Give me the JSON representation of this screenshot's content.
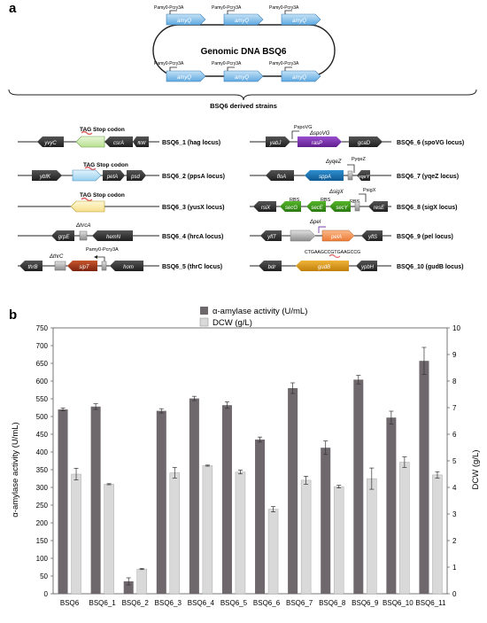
{
  "panel_a": {
    "letter": "a",
    "genome_title": "Genomic DNA BSQ6",
    "gene_label": "amyQ",
    "promoter_label": "Pamy0-Pcry3A",
    "derived_title": "BSQ6 derived strains",
    "tag_stop": "TAG Stop codon",
    "strains": [
      {
        "name": "BSQ6_1 (hag locus)",
        "genes": [
          "yvyC",
          "hag",
          "csrA",
          "fliW"
        ]
      },
      {
        "name": "BSQ6_2 (ppsA locus)",
        "genes": [
          "ybfK",
          "ppsA",
          "petA",
          "psd"
        ]
      },
      {
        "name": "BSQ6_3 (yusX locus)",
        "genes": [
          "yusX"
        ]
      },
      {
        "name": "BSQ6_4 (hrcA locus)",
        "genes": [
          "grpE",
          "ΔhrcA",
          "hemN"
        ]
      },
      {
        "name": "BSQ6_5 (thrC locus)",
        "genes": [
          "thrB",
          "ΔthrC",
          "sipT",
          "hom"
        ]
      },
      {
        "name": "BSQ6_6 (spoVG locus)",
        "genes": [
          "yabJ",
          "ΔspoVG",
          "rasP",
          "gcaD"
        ]
      },
      {
        "name": "BSQ6_7 (yqeZ locus)",
        "genes": [
          "floA",
          "ΔyqeZ",
          "sppA",
          "yqeY"
        ]
      },
      {
        "name": "BSQ6_8 (sigX locus)",
        "genes": [
          "rsiX",
          "secG",
          "secE",
          "secY",
          "ΔsigX",
          "resE"
        ]
      },
      {
        "name": "BSQ6_9 (pel locus)",
        "genes": [
          "yflT",
          "Δpel",
          "pelA",
          "yflS"
        ]
      },
      {
        "name": "BSQ6_10 (gudB locus)",
        "genes": [
          "bdr",
          "gudB",
          "ypbH"
        ]
      }
    ],
    "extra_labels": {
      "spoVG_promoter": "PspoVG",
      "yqeZ_promoter": "PyqeZ",
      "sigX_promoter": "PsigX",
      "rbs": "RBS",
      "gudb_seq": "CTGAAGCCGTGAAGCCG"
    }
  },
  "panel_b": {
    "letter": "b",
    "chart_data": {
      "type": "bar",
      "categories": [
        "BSQ6",
        "BSQ6_1",
        "BSQ6_2",
        "BSQ6_3",
        "BSQ6_4",
        "BSQ6_5",
        "BSQ6_6",
        "BSQ6_7",
        "BSQ6_8",
        "BSQ6_9",
        "BSQ6_10",
        "BSQ6_11"
      ],
      "series": [
        {
          "name": "α-amylase activity (U/mL)",
          "axis": "left",
          "color": "#6e676b",
          "values": [
            520,
            528,
            35,
            516,
            551,
            532,
            435,
            580,
            412,
            604,
            497,
            657
          ],
          "errors": [
            4,
            8,
            10,
            6,
            6,
            9,
            7,
            15,
            19,
            12,
            18,
            38
          ]
        },
        {
          "name": "DCW (g/L)",
          "axis": "right",
          "color": "#d9d9d9",
          "values": [
            4.5,
            4.12,
            0.93,
            4.55,
            4.82,
            4.58,
            3.18,
            4.27,
            4.03,
            4.33,
            4.95,
            4.47
          ],
          "errors": [
            0.22,
            0.02,
            0.02,
            0.2,
            0.02,
            0.07,
            0.1,
            0.15,
            0.05,
            0.4,
            0.2,
            0.12
          ]
        }
      ],
      "ylabel": "α-amylase activity (U/mL)",
      "y2label": "DCW (g/L)",
      "ylim": [
        0,
        750
      ],
      "yticks": [
        0,
        50,
        100,
        150,
        200,
        250,
        300,
        350,
        400,
        450,
        500,
        550,
        600,
        650,
        700,
        750
      ],
      "y2lim": [
        0,
        10
      ],
      "y2ticks": [
        0,
        1,
        2,
        3,
        4,
        5,
        6,
        7,
        8,
        9,
        10
      ],
      "legend_position": "top-center",
      "grid": false
    }
  }
}
